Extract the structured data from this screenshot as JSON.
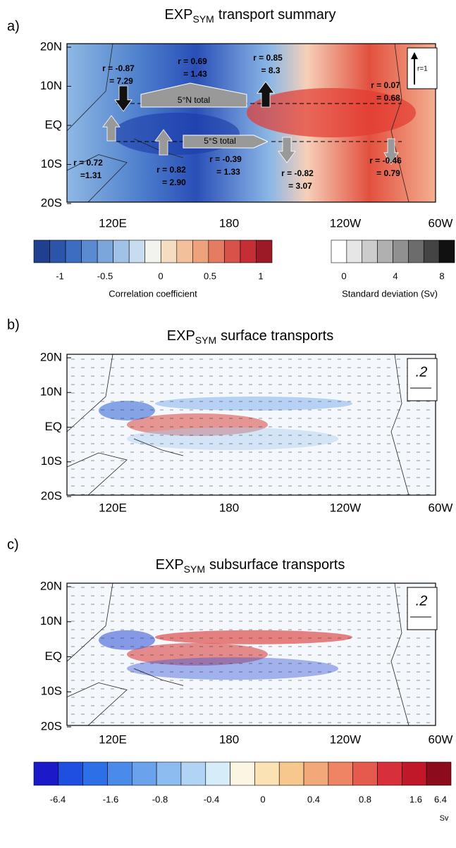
{
  "panels": [
    {
      "label": "a)",
      "title": {
        "main": "EXP",
        "sub": "SYM",
        "rest": "transport summary"
      },
      "lat_labels": [
        "20N",
        "10N",
        "EQ",
        "10S",
        "20S"
      ],
      "lon_labels": [
        "120E",
        "180",
        "120W",
        "60W"
      ],
      "reference": "r=1",
      "boxes": [
        "5°N total",
        "5°S total"
      ],
      "annotations": [
        {
          "r": "r = -0.87",
          "value": "= 7.29"
        },
        {
          "r": "r = 0.69",
          "value": "= 1.43"
        },
        {
          "r": "r = 0.85",
          "value": "= 8.3"
        },
        {
          "r": "r = 0.07",
          "value": "= 0.68"
        },
        {
          "r": "r = 0.72",
          "value": "=1.31"
        },
        {
          "r": "r = 0.82",
          "value": "= 2.90"
        },
        {
          "r": "r = -0.39",
          "value": "= 1.33"
        },
        {
          "r": "r = -0.82",
          "value": "= 3.07"
        },
        {
          "r": "r = -0.46",
          "value": "= 0.79"
        }
      ]
    },
    {
      "label": "b)",
      "title": {
        "main": "EXP",
        "sub": "SYM",
        "rest": "surface transports"
      },
      "lat_labels": [
        "20N",
        "10N",
        "EQ",
        "10S",
        "20S"
      ],
      "lon_labels": [
        "120E",
        "180",
        "120W",
        "60W"
      ],
      "reference": ".2"
    },
    {
      "label": "c)",
      "title": {
        "main": "EXP",
        "sub": "SYM",
        "rest": "subsurface transports"
      },
      "lat_labels": [
        "20N",
        "10N",
        "EQ",
        "10S",
        "20S"
      ],
      "lon_labels": [
        "120E",
        "180",
        "120W",
        "60W"
      ],
      "reference": ".2"
    }
  ],
  "colorbars": [
    {
      "ticks": [
        "-1",
        "-0.5",
        "0",
        "0.5",
        "1"
      ],
      "label": "Correlation coefficient",
      "colors": [
        "#1f3f8f",
        "#2b55a8",
        "#3b6dc0",
        "#5a8ad0",
        "#7aa6dc",
        "#a0c2e6",
        "#c8dcef",
        "#f2f2ee",
        "#f6dcc0",
        "#f2c09a",
        "#eea27c",
        "#e47c62",
        "#d8524a",
        "#c42e34",
        "#9c1a26"
      ]
    },
    {
      "ticks": [
        "0",
        "4",
        "8"
      ],
      "label": "Standard deviation (Sv)",
      "colors": [
        "#ffffff",
        "#e6e6e6",
        "#cccccc",
        "#b0b0b0",
        "#909090",
        "#6c6c6c",
        "#444444",
        "#111111"
      ]
    },
    {
      "ticks": [
        "-6.4",
        "-1.6",
        "-0.8",
        "-0.4",
        "0",
        "0.4",
        "0.8",
        "1.6",
        "6.4"
      ],
      "label": "Sv",
      "colors": [
        "#1a1ac8",
        "#1f4fe0",
        "#2c6fe6",
        "#4a8ae8",
        "#6aa3ec",
        "#8cbcf0",
        "#b2d4f4",
        "#d6ecf8",
        "#fbf6e4",
        "#fae2b4",
        "#f6c88e",
        "#f2a878",
        "#ee8464",
        "#e65a4e",
        "#d8303a",
        "#c01828",
        "#8c0c1c"
      ]
    }
  ]
}
